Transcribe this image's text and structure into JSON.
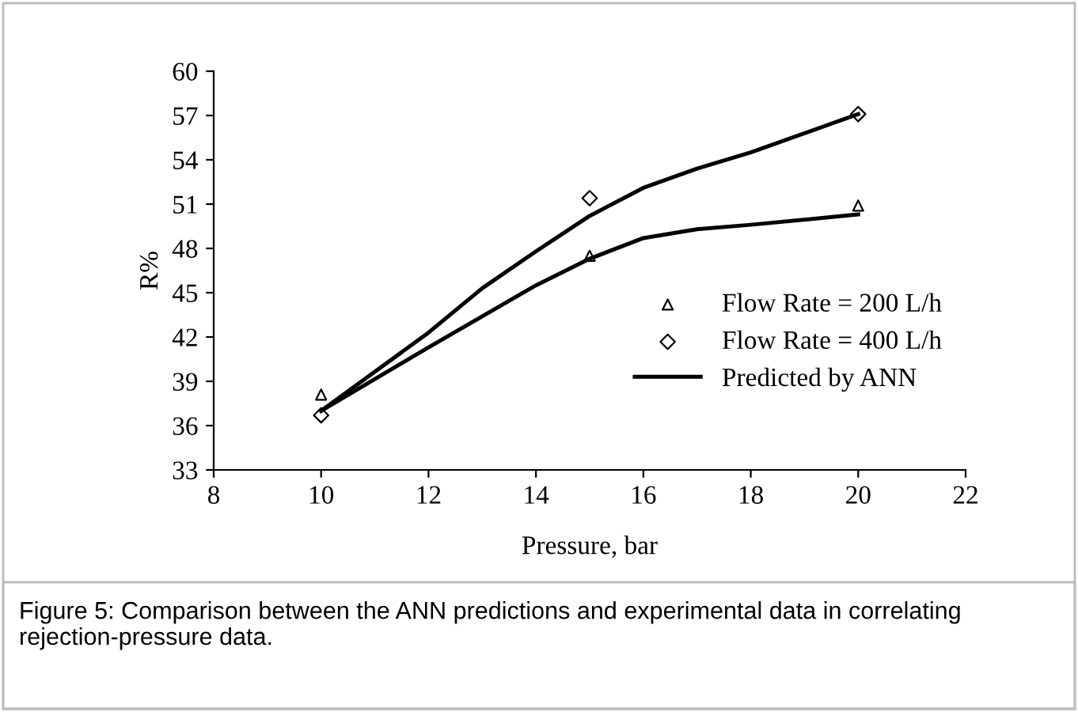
{
  "chart_data": {
    "type": "scatter",
    "xlabel": "Pressure, bar",
    "ylabel": "R%",
    "xlim": [
      8,
      22
    ],
    "xticks": [
      8,
      10,
      12,
      14,
      16,
      18,
      20,
      22
    ],
    "ylim": [
      33,
      60
    ],
    "yticks": [
      33,
      36,
      39,
      42,
      45,
      48,
      51,
      54,
      57,
      60
    ],
    "grid": false,
    "legend": "right",
    "series": [
      {
        "name": "Flow Rate = 200 L/h",
        "marker": "triangle",
        "color": "#000000",
        "x": [
          10,
          15,
          20
        ],
        "values": [
          38.1,
          47.5,
          50.9
        ]
      },
      {
        "name": "Flow Rate = 400 L/h",
        "marker": "diamond",
        "color": "#000000",
        "x": [
          10,
          15,
          20
        ],
        "values": [
          36.7,
          51.4,
          57.1
        ]
      },
      {
        "name": "Predicted by ANN",
        "type": "line",
        "marker": "none",
        "color": "#000000",
        "x": [
          10,
          12,
          14,
          15,
          16,
          17,
          18,
          20
        ],
        "values": [
          37.0,
          41.3,
          45.5,
          47.3,
          48.7,
          49.3,
          49.6,
          50.3
        ]
      },
      {
        "type": "line",
        "marker": "none",
        "color": "#000000",
        "x": [
          10,
          12,
          13,
          14,
          15,
          16,
          17,
          18,
          20
        ],
        "values": [
          37.0,
          42.3,
          45.3,
          47.8,
          50.2,
          52.1,
          53.4,
          54.5,
          57.1
        ]
      }
    ],
    "annotations": [
      "Figure 5: Comparison between the ANN predictions and experimental data in correlating rejection-pressure data."
    ]
  }
}
